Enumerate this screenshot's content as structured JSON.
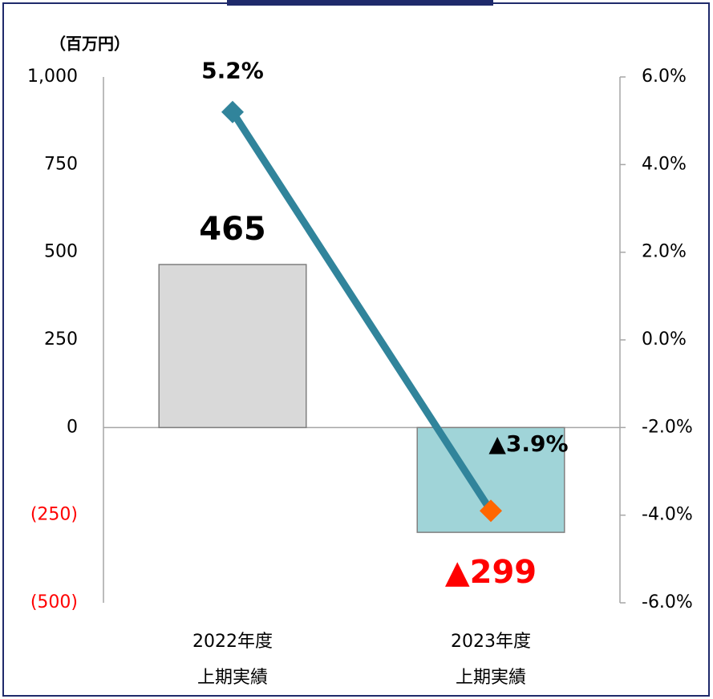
{
  "chart_data": {
    "type": "combo",
    "y_axis_label": "（百万円）",
    "categories": [
      "2022年度\n上期実績",
      "2023年度\n上期実績"
    ],
    "series": [
      {
        "type": "bar",
        "values": [
          465,
          -299
        ],
        "value_labels": [
          "465",
          "▲299"
        ],
        "colors": [
          "#d9d9d9",
          "#a0d4d8"
        ],
        "label_colors": [
          "#000000",
          "#ff0000"
        ]
      },
      {
        "type": "line",
        "axis": "y2",
        "color": "#31849b",
        "marker_colors": [
          "#31849b",
          "#ff6600"
        ],
        "values": [
          5.2,
          -3.9
        ],
        "value_labels": [
          "5.2%",
          "▲3.9%"
        ]
      }
    ],
    "ylim": [
      -500,
      1000
    ],
    "yticks": [
      {
        "value": 1000,
        "label": "1,000"
      },
      750,
      500,
      250,
      0,
      {
        "value": -250,
        "label": "(250)"
      },
      {
        "value": -500,
        "label": "(500)"
      }
    ],
    "negative_tick_color": "#ff0000",
    "y2lim": [
      -6,
      6
    ],
    "y2ticks": [
      {
        "value": 6,
        "label": "6.0%"
      },
      {
        "value": 4,
        "label": "4.0%"
      },
      {
        "value": 2,
        "label": "2.0%"
      },
      {
        "value": 0,
        "label": "0.0%"
      },
      {
        "value": -2,
        "label": "-2.0%"
      },
      {
        "value": -4,
        "label": "-4.0%"
      },
      {
        "value": -6,
        "label": "-6.0%"
      }
    ]
  }
}
